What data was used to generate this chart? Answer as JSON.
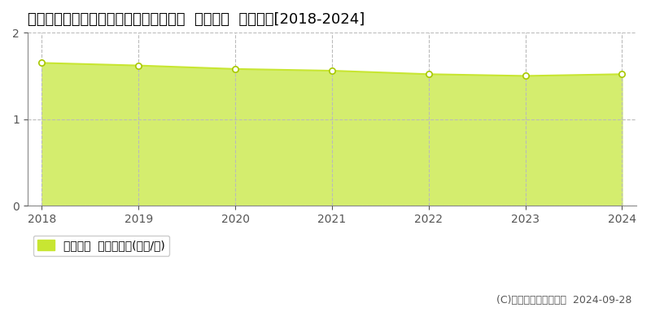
{
  "title": "北海道寿都郡寿都町字新栄町２４１番２  基準地価  地価推移[2018-2024]",
  "years": [
    2018,
    2019,
    2020,
    2021,
    2022,
    2023,
    2024
  ],
  "values": [
    1.65,
    1.62,
    1.58,
    1.56,
    1.52,
    1.5,
    1.52
  ],
  "ylim": [
    0,
    2
  ],
  "yticks": [
    0,
    1,
    2
  ],
  "line_color": "#c8e632",
  "fill_color": "#d4ed6e",
  "marker_face_color": "#ffffff",
  "marker_edge_color": "#a8c800",
  "grid_color": "#bbbbbb",
  "background_color": "#ffffff",
  "legend_label": "基準地価  平均坤単価(万円/坤)",
  "legend_color": "#c8e632",
  "copyright_text": "(C)土地価格ドットコム  2024-09-28",
  "title_fontsize": 13,
  "axis_fontsize": 10,
  "legend_fontsize": 10,
  "copyright_fontsize": 9
}
